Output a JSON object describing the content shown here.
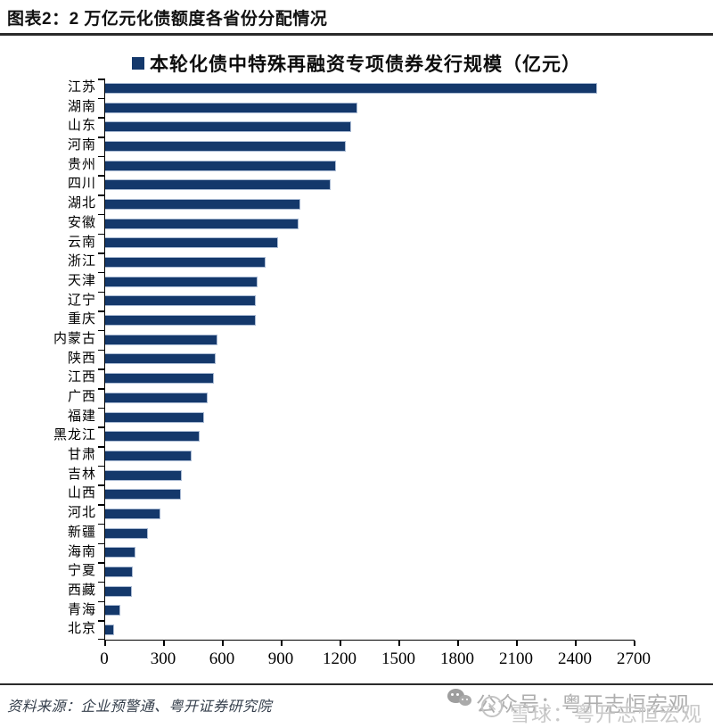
{
  "header": {
    "title": "图表2：2 万亿元化债额度各省份分配情况"
  },
  "chart_data": {
    "type": "bar",
    "orientation": "horizontal",
    "legend": "本轮化债中特殊再融资专项债券发行规模（亿元）",
    "legend_position": "top-center",
    "categories": [
      "江苏",
      "湖南",
      "山东",
      "河南",
      "贵州",
      "四川",
      "湖北",
      "安徽",
      "云南",
      "浙江",
      "天津",
      "辽宁",
      "重庆",
      "内蒙古",
      "陕西",
      "江西",
      "广西",
      "福建",
      "黑龙江",
      "甘肃",
      "吉林",
      "山西",
      "河北",
      "新疆",
      "海南",
      "宁夏",
      "西藏",
      "青海",
      "北京"
    ],
    "values": [
      2511,
      1288,
      1255,
      1227,
      1176,
      1148,
      996,
      986,
      884,
      817,
      779,
      770,
      766,
      572,
      564,
      556,
      523,
      506,
      483,
      441,
      389,
      386,
      283,
      219,
      153,
      139,
      137,
      78,
      47
    ],
    "xlim": [
      0,
      2700
    ],
    "x_ticks": [
      0,
      300,
      600,
      900,
      1200,
      1500,
      1800,
      2100,
      2400,
      2700
    ],
    "grid": "off",
    "bar_color": "#14386b",
    "bar_border_color": "#a9bad3"
  },
  "footer": {
    "source": "资料来源：企业预警通、粤开证券研究院"
  },
  "watermark": {
    "line1": "公众号：粤开志恒宏观",
    "line2": "雪球：粤开志恒宏观",
    "icon2_glyph": "✕"
  }
}
